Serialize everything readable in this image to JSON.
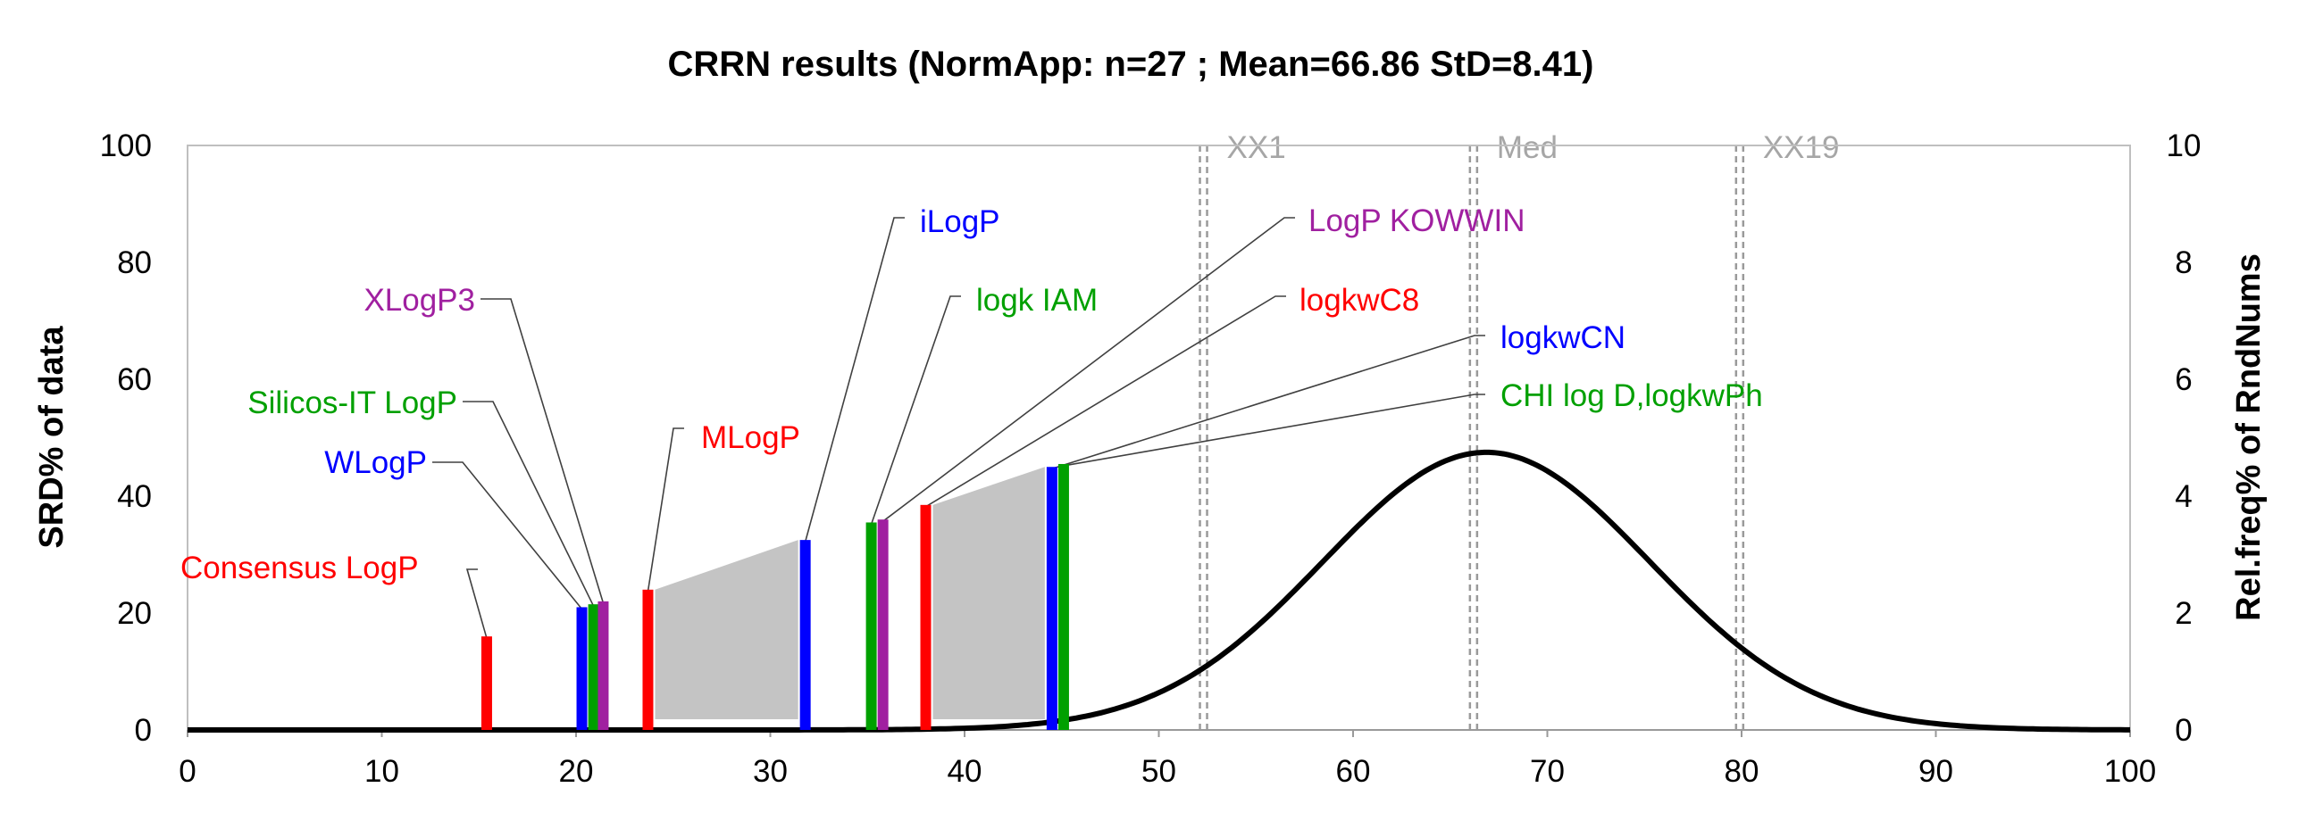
{
  "chart_data": {
    "type": "bar",
    "title": "CRRN results (NormApp: n=27 ; Mean=66.86 StD=8.41)",
    "xlabel": "",
    "ylabel": "SRD% of data",
    "y2label": "Rel.freq% of RndNums",
    "xlim": [
      0,
      100
    ],
    "ylim": [
      0,
      100
    ],
    "y2lim": [
      0,
      10
    ],
    "xticks": [
      0,
      10,
      20,
      30,
      40,
      50,
      60,
      70,
      80,
      90,
      100
    ],
    "yticks": [
      0,
      20,
      40,
      60,
      80,
      100
    ],
    "y2ticks": [
      0,
      2,
      4,
      6,
      8,
      10
    ],
    "grid": false,
    "series": [
      {
        "name": "Consensus LogP",
        "x": 15.4,
        "value": 16,
        "color": "#ff0000"
      },
      {
        "name": "WLogP",
        "x": 20.3,
        "value": 21,
        "color": "#0000ff"
      },
      {
        "name": "Silicos-IT LogP",
        "x": 20.9,
        "value": 21.5,
        "color": "#00a000"
      },
      {
        "name": "XLogP3",
        "x": 21.4,
        "value": 22,
        "color": "#a020a0"
      },
      {
        "name": "MLogP",
        "x": 23.7,
        "value": 24,
        "color": "#ff0000"
      },
      {
        "name": "iLogP",
        "x": 31.8,
        "value": 32.5,
        "color": "#0000ff"
      },
      {
        "name": "logk IAM",
        "x": 35.2,
        "value": 35.5,
        "color": "#00a000"
      },
      {
        "name": "LogP KOWWIN",
        "x": 35.8,
        "value": 36,
        "color": "#a020a0"
      },
      {
        "name": "logkwC8",
        "x": 38,
        "value": 38.5,
        "color": "#ff0000"
      },
      {
        "name": "logkwCN",
        "x": 44.5,
        "value": 45,
        "color": "#0000ff"
      },
      {
        "name": "CHI log D,logkwPh",
        "x": 45.1,
        "value": 45.5,
        "color": "#00a000"
      }
    ],
    "shaded_ranges": [
      {
        "x": [
          23.7,
          31.8
        ],
        "y": [
          24,
          32.5
        ]
      },
      {
        "x": [
          38,
          44.5
        ],
        "y": [
          38.5,
          45
        ]
      }
    ],
    "vertical_markers": [
      {
        "label": "XX1",
        "x": 52.3
      },
      {
        "label": "Med",
        "x": 66.2
      },
      {
        "label": "XX19",
        "x": 79.9
      }
    ],
    "distribution": {
      "name": "Rel.freq% of RndNums",
      "type": "normal",
      "mean": 66.86,
      "std": 8.41,
      "peak": 4.75,
      "color": "#000000"
    }
  }
}
